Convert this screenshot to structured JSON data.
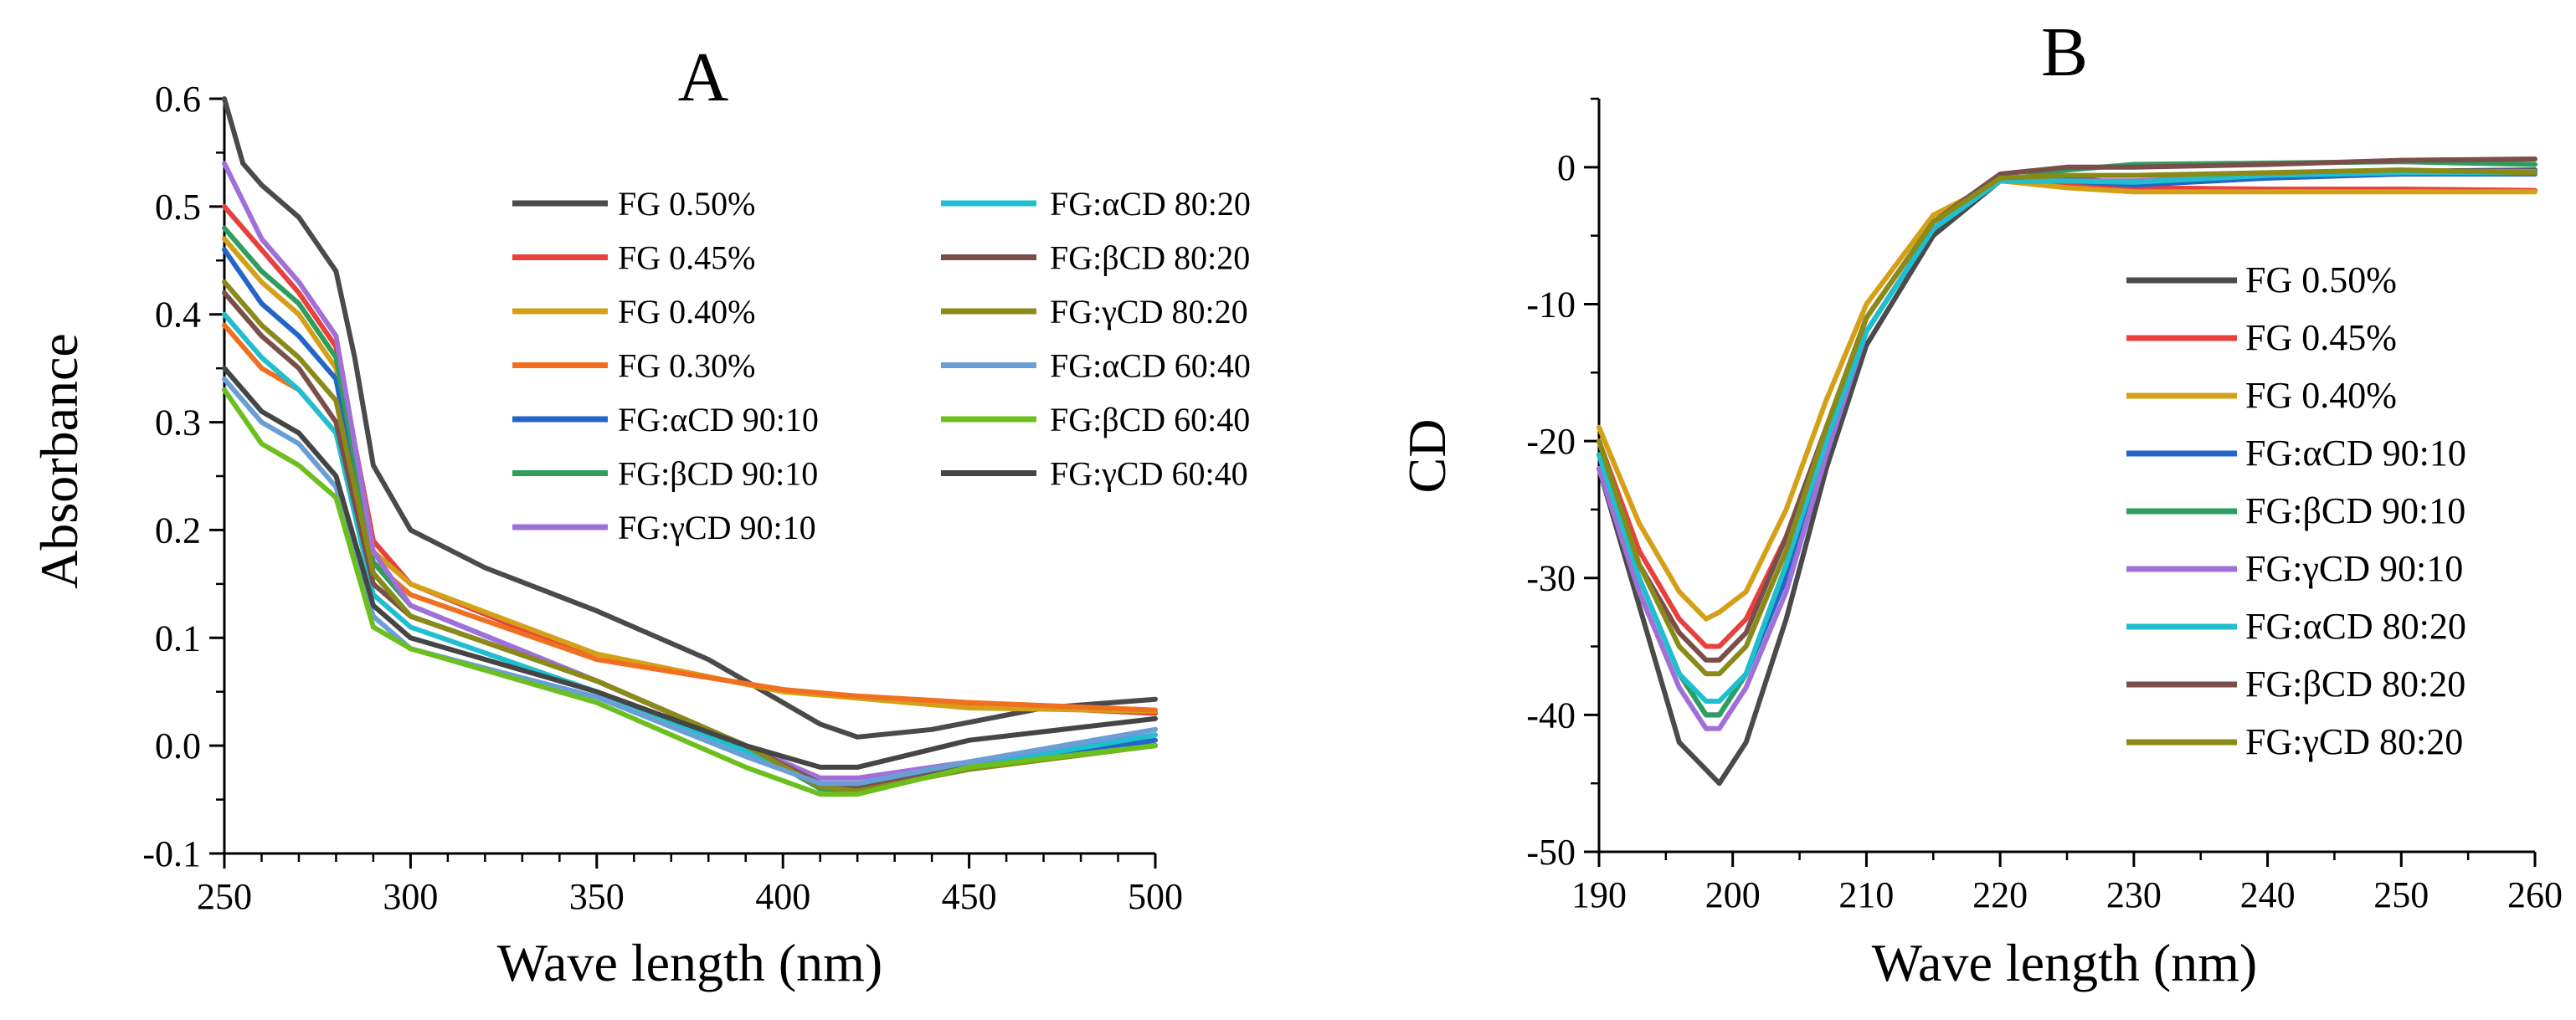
{
  "chart_data": [
    {
      "panel": "A",
      "type": "line",
      "title": "A",
      "xlabel": "Wave length (nm)",
      "ylabel": "Absorbance",
      "xlim": [
        250,
        500
      ],
      "ylim": [
        -0.1,
        0.6
      ],
      "xticks": [
        250,
        300,
        350,
        400,
        450,
        500
      ],
      "yticks": [
        -0.1,
        0.0,
        0.1,
        0.2,
        0.3,
        0.4,
        0.5,
        0.6
      ],
      "xtick_labels": [
        "250",
        "300",
        "350",
        "400",
        "450",
        "500"
      ],
      "ytick_labels": [
        "-0.1",
        "0.0",
        "0.1",
        "0.2",
        "0.3",
        "0.4",
        "0.5",
        "0.6"
      ],
      "grid": false,
      "legend_position": "top-right",
      "series": [
        {
          "name": "FG 0.50%",
          "color": "#4a4a4a",
          "x": [
            250,
            255,
            260,
            270,
            280,
            285,
            290,
            300,
            320,
            350,
            380,
            400,
            410,
            420,
            440,
            470,
            500
          ],
          "y": [
            0.6,
            0.54,
            0.52,
            0.49,
            0.44,
            0.36,
            0.26,
            0.2,
            0.165,
            0.125,
            0.08,
            0.04,
            0.02,
            0.008,
            0.015,
            0.035,
            0.043
          ]
        },
        {
          "name": "FG 0.45%",
          "color": "#e8413c",
          "x": [
            250,
            260,
            270,
            280,
            285,
            290,
            300,
            350,
            400,
            420,
            450,
            500
          ],
          "y": [
            0.5,
            0.46,
            0.42,
            0.37,
            0.28,
            0.19,
            0.15,
            0.08,
            0.052,
            0.045,
            0.038,
            0.03
          ]
        },
        {
          "name": "FG 0.40%",
          "color": "#d4a017",
          "x": [
            250,
            260,
            270,
            280,
            285,
            290,
            300,
            350,
            400,
            420,
            450,
            500
          ],
          "y": [
            0.47,
            0.43,
            0.4,
            0.35,
            0.27,
            0.18,
            0.15,
            0.085,
            0.05,
            0.044,
            0.035,
            0.032
          ]
        },
        {
          "name": "FG 0.30%",
          "color": "#f07020",
          "x": [
            250,
            260,
            270,
            280,
            285,
            290,
            300,
            350,
            400,
            420,
            450,
            500
          ],
          "y": [
            0.39,
            0.35,
            0.33,
            0.29,
            0.23,
            0.17,
            0.14,
            0.08,
            0.052,
            0.046,
            0.04,
            0.033
          ]
        },
        {
          "name": "FG:αCD 90:10",
          "color": "#2166c8",
          "x": [
            250,
            260,
            270,
            280,
            290,
            300,
            350,
            390,
            410,
            420,
            450,
            500
          ],
          "y": [
            0.46,
            0.41,
            0.38,
            0.34,
            0.16,
            0.12,
            0.06,
            0.0,
            -0.035,
            -0.035,
            -0.02,
            0.005
          ]
        },
        {
          "name": "FG:βCD 90:10",
          "color": "#2e9e5e",
          "x": [
            250,
            260,
            270,
            280,
            290,
            300,
            350,
            390,
            410,
            420,
            450,
            500
          ],
          "y": [
            0.48,
            0.44,
            0.41,
            0.36,
            0.17,
            0.13,
            0.06,
            0.0,
            -0.04,
            -0.042,
            -0.02,
            0.0
          ]
        },
        {
          "name": "FG:γCD 90:10",
          "color": "#a070d8",
          "x": [
            250,
            260,
            270,
            280,
            290,
            300,
            350,
            390,
            410,
            420,
            450,
            500
          ],
          "y": [
            0.54,
            0.47,
            0.43,
            0.38,
            0.18,
            0.13,
            0.06,
            0.0,
            -0.03,
            -0.03,
            -0.015,
            0.01
          ]
        },
        {
          "name": "FG:αCD 80:20",
          "color": "#1fbfcf",
          "x": [
            250,
            260,
            270,
            280,
            290,
            300,
            350,
            390,
            410,
            420,
            450,
            500
          ],
          "y": [
            0.4,
            0.36,
            0.33,
            0.29,
            0.14,
            0.11,
            0.05,
            -0.005,
            -0.035,
            -0.038,
            -0.02,
            0.01
          ]
        },
        {
          "name": "FG:βCD 80:20",
          "color": "#7a4f4a",
          "x": [
            250,
            260,
            270,
            280,
            290,
            300,
            350,
            390,
            410,
            420,
            450,
            500
          ],
          "y": [
            0.42,
            0.38,
            0.35,
            0.3,
            0.15,
            0.12,
            0.06,
            0.0,
            -0.035,
            -0.04,
            -0.02,
            0.0
          ]
        },
        {
          "name": "FG:γCD 80:20",
          "color": "#8a8a18",
          "x": [
            250,
            260,
            270,
            280,
            290,
            300,
            350,
            390,
            410,
            420,
            450,
            500
          ],
          "y": [
            0.43,
            0.39,
            0.36,
            0.32,
            0.16,
            0.12,
            0.06,
            0.0,
            -0.038,
            -0.042,
            -0.022,
            0.0
          ]
        },
        {
          "name": "FG:αCD 60:40",
          "color": "#6a9ed6",
          "x": [
            250,
            260,
            270,
            280,
            290,
            300,
            350,
            390,
            410,
            420,
            450,
            500
          ],
          "y": [
            0.34,
            0.3,
            0.28,
            0.24,
            0.12,
            0.09,
            0.045,
            -0.01,
            -0.035,
            -0.035,
            -0.015,
            0.015
          ]
        },
        {
          "name": "FG:βCD 60:40",
          "color": "#6cbf1e",
          "x": [
            250,
            260,
            270,
            280,
            290,
            300,
            350,
            390,
            410,
            420,
            450,
            500
          ],
          "y": [
            0.33,
            0.28,
            0.26,
            0.23,
            0.11,
            0.09,
            0.04,
            -0.02,
            -0.045,
            -0.045,
            -0.02,
            0.0
          ]
        },
        {
          "name": "FG:γCD 60:40",
          "color": "#454545",
          "x": [
            250,
            260,
            270,
            280,
            290,
            300,
            350,
            390,
            410,
            420,
            450,
            500
          ],
          "y": [
            0.35,
            0.31,
            0.29,
            0.25,
            0.13,
            0.1,
            0.05,
            0.0,
            -0.02,
            -0.02,
            0.005,
            0.025
          ]
        }
      ]
    },
    {
      "panel": "B",
      "type": "line",
      "title": "B",
      "xlabel": "Wave length  (nm)",
      "ylabel": "CD",
      "xlim": [
        190,
        260
      ],
      "ylim": [
        -50,
        5
      ],
      "xticks": [
        190,
        200,
        210,
        220,
        230,
        240,
        250,
        260
      ],
      "yticks": [
        -50,
        -40,
        -30,
        -20,
        -10,
        0
      ],
      "xtick_labels": [
        "190",
        "200",
        "210",
        "220",
        "230",
        "240",
        "250",
        "260"
      ],
      "ytick_labels": [
        "-50",
        "-40",
        "-30",
        "-20",
        "-10",
        "0"
      ],
      "grid": false,
      "legend_position": "right",
      "series": [
        {
          "name": "FG 0.50%",
          "color": "#4a4a4a",
          "x": [
            190,
            193,
            196,
            198,
            199,
            201,
            204,
            207,
            210,
            215,
            220,
            225,
            230,
            240,
            250,
            260
          ],
          "y": [
            -22,
            -32,
            -42,
            -44,
            -45,
            -42,
            -33,
            -22,
            -13,
            -5,
            -1,
            -0.8,
            -1.2,
            -0.6,
            -0.3,
            -0.2
          ]
        },
        {
          "name": "FG 0.45%",
          "color": "#e8413c",
          "x": [
            190,
            193,
            196,
            198,
            199,
            201,
            204,
            207,
            210,
            215,
            220,
            225,
            230,
            240,
            250,
            260
          ],
          "y": [
            -20,
            -28,
            -33,
            -35,
            -35,
            -33,
            -27,
            -19,
            -11,
            -4,
            -1,
            -1.2,
            -1.5,
            -1.6,
            -1.6,
            -1.7
          ]
        },
        {
          "name": "FG 0.40%",
          "color": "#d4a017",
          "x": [
            190,
            193,
            196,
            198,
            199,
            201,
            204,
            207,
            210,
            215,
            220,
            225,
            230,
            240,
            250,
            260
          ],
          "y": [
            -19,
            -26,
            -31,
            -33,
            -32.5,
            -31,
            -25,
            -17,
            -10,
            -3.5,
            -1,
            -1.5,
            -1.8,
            -1.8,
            -1.8,
            -1.8
          ]
        },
        {
          "name": "FG:αCD 90:10",
          "color": "#2166c8",
          "x": [
            190,
            193,
            196,
            198,
            199,
            201,
            204,
            207,
            210,
            215,
            220,
            225,
            230,
            240,
            250,
            260
          ],
          "y": [
            -21,
            -30,
            -37,
            -40,
            -40,
            -37,
            -30,
            -20,
            -12,
            -4.5,
            -1,
            -1,
            -1.3,
            -0.8,
            -0.5,
            -0.5
          ]
        },
        {
          "name": "FG:βCD 90:10",
          "color": "#2e9e5e",
          "x": [
            190,
            193,
            196,
            198,
            199,
            201,
            204,
            207,
            210,
            215,
            220,
            225,
            230,
            240,
            250,
            260
          ],
          "y": [
            -21,
            -30,
            -37,
            -40,
            -40,
            -37,
            -29,
            -20,
            -12,
            -4.5,
            -1,
            -0.2,
            0.2,
            0.3,
            0.4,
            0.2
          ]
        },
        {
          "name": "FG:γCD 90:10",
          "color": "#a070d8",
          "x": [
            190,
            193,
            196,
            198,
            199,
            201,
            204,
            207,
            210,
            215,
            220,
            225,
            230,
            240,
            250,
            260
          ],
          "y": [
            -22,
            -31,
            -38,
            -41,
            -41,
            -38,
            -31,
            -21,
            -12,
            -4.5,
            -1,
            -1,
            -1,
            -0.6,
            -0.3,
            -0.3
          ]
        },
        {
          "name": "FG:αCD 80:20",
          "color": "#1fbfcf",
          "x": [
            190,
            193,
            196,
            198,
            199,
            201,
            204,
            207,
            210,
            215,
            220,
            225,
            230,
            240,
            250,
            260
          ],
          "y": [
            -21,
            -30,
            -37,
            -39,
            -39,
            -37,
            -29,
            -20,
            -12,
            -4.5,
            -1,
            -1,
            -1.1,
            -0.6,
            -0.4,
            -0.4
          ]
        },
        {
          "name": "FG:βCD 80:20",
          "color": "#7a4f4a",
          "x": [
            190,
            193,
            196,
            198,
            199,
            201,
            204,
            207,
            210,
            215,
            220,
            225,
            230,
            240,
            250,
            260
          ],
          "y": [
            -20,
            -29,
            -34,
            -36,
            -36,
            -34,
            -27,
            -19,
            -11,
            -4,
            -0.5,
            0,
            0,
            0.2,
            0.5,
            0.6
          ]
        },
        {
          "name": "FG:γCD 80:20",
          "color": "#8a8a18",
          "x": [
            190,
            193,
            196,
            198,
            199,
            201,
            204,
            207,
            210,
            215,
            220,
            225,
            230,
            240,
            250,
            260
          ],
          "y": [
            -20,
            -29,
            -35,
            -37,
            -37,
            -35,
            -28,
            -19,
            -11,
            -4,
            -0.8,
            -0.6,
            -0.6,
            -0.4,
            -0.2,
            -0.4
          ]
        }
      ]
    }
  ]
}
